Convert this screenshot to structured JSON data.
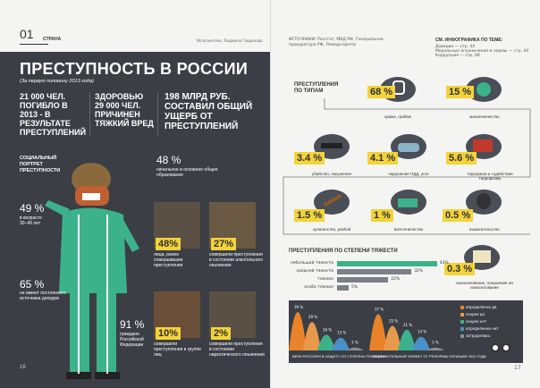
{
  "left": {
    "section_number": "01",
    "section_title": "СТРАНА",
    "author": "Исполнитель: Людмила Гаврилова",
    "headline": "ПРЕСТУПНОСТЬ В РОССИИ",
    "subheadline": "(За первую половину 2013 года)",
    "stat1": "21 000 ЧЕЛ. ПОГИБЛО В 2013 - В РЕЗУЛЬТАТЕ ПРЕСТУПЛЕНИЙ",
    "stat2": "ЗДОРОВЬЮ 29 000 ЧЕЛ. ПРИЧИНЕН ТЯЖКИЙ ВРЕД",
    "stat3": "198 МЛРД РУБ. СОСТАВИЛ ОБЩИЙ УЩЕРБ ОТ ПРЕСТУПЛЕНИЙ",
    "portrait_title": "СОЦИАЛЬНЫЙ ПОРТРЕТ ПРЕСТУПНОСТИ",
    "p48": "48 %",
    "p48_text": "начальное и основное общее образование",
    "p49": "49 %",
    "p49_text": "в возрасте 30–49 лет",
    "p65": "65 %",
    "p65_text": "не имеют постоянного источника доходов",
    "p91": "91 %",
    "p91_text": "граждане Российской Федерации",
    "card1_pct": "48%",
    "card1_text": "лица, ранее совершавшие преступления",
    "card2_pct": "27%",
    "card2_text": "совершили преступления в состоянии алкогольного опьянения",
    "card3_pct": "10%",
    "card3_text": "совершили преступления в группе лиц",
    "card4_pct": "2%",
    "card4_text": "совершили преступления в состоянии наркотического опьянения",
    "page_number": "16"
  },
  "right": {
    "source": "ИСТОЧНИКИ: Росстат, МВД РФ, Генеральная прокуратура РФ, Левада-Центр",
    "see_title": "СМ. ИНФОГРАФИКА ПО ТЕМЕ:",
    "see_items": [
      "Доверие — стр. 44",
      "Моральные ограничения и нормы — стр. 44",
      "Коррупция — стр. 66"
    ],
    "types_title": "ПРЕСТУПЛЕНИЯ ПО ТИПАМ",
    "types": [
      {
        "pct": "68 %",
        "label": "кража, грабеж"
      },
      {
        "pct": "15 %",
        "label": "мошенничество"
      },
      {
        "pct": "3.4 %",
        "label": "убийство, покушение"
      },
      {
        "pct": "4.1 %",
        "label": "нарушение ПДД, угон"
      },
      {
        "pct": "5.6 %",
        "label": "терроризм и содействие терроризму"
      },
      {
        "pct": "1.5 %",
        "label": "хулиганство, разбой"
      },
      {
        "pct": "1 %",
        "label": "взяточничество"
      },
      {
        "pct": "0.5 %",
        "label": "вымогательство"
      },
      {
        "pct": "0.3 %",
        "label": "изнасилование, покушение на изнасилование"
      }
    ],
    "severity_title": "ПРЕСТУПЛЕНИЯ ПО СТЕПЕНИ ТЯЖЕСТИ",
    "severity": [
      {
        "label": "небольшой тяжести",
        "value": 43,
        "text": "43%"
      },
      {
        "label": "средней тяжести",
        "value": 32,
        "text": "32%"
      },
      {
        "label": "тяжкие",
        "value": 22,
        "text": "22%"
      },
      {
        "label": "особо тяжкие",
        "value": 5,
        "text": "5%"
      }
    ],
    "chart_left_caption": "ВЕРА РОССИЯН В ЗАЩИТУ СО СТОРОНЫ ПОЛИЦИИ",
    "chart_right_caption": "ПОЛОЖИТЕЛЬНЫЙ ЭФФЕКТ ОТ РЕФОРМЫ ПОЛИЦИИ 2012 ГОДА",
    "chart_left_values": [
      "39 %",
      "29 %",
      "16 %",
      "13 %",
      "3 %"
    ],
    "chart_right_values": [
      "37 %",
      "25 %",
      "21 %",
      "14 %",
      "3 %"
    ],
    "legend": [
      "определенно да",
      "скорее да",
      "скорее нет",
      "определенно нет",
      "затрудняюсь"
    ],
    "page_number": "17"
  },
  "colors": {
    "dark": "#3b3e45",
    "yellow": "#f3d33a",
    "green": "#3cb28a",
    "orange": "#e8832a"
  }
}
